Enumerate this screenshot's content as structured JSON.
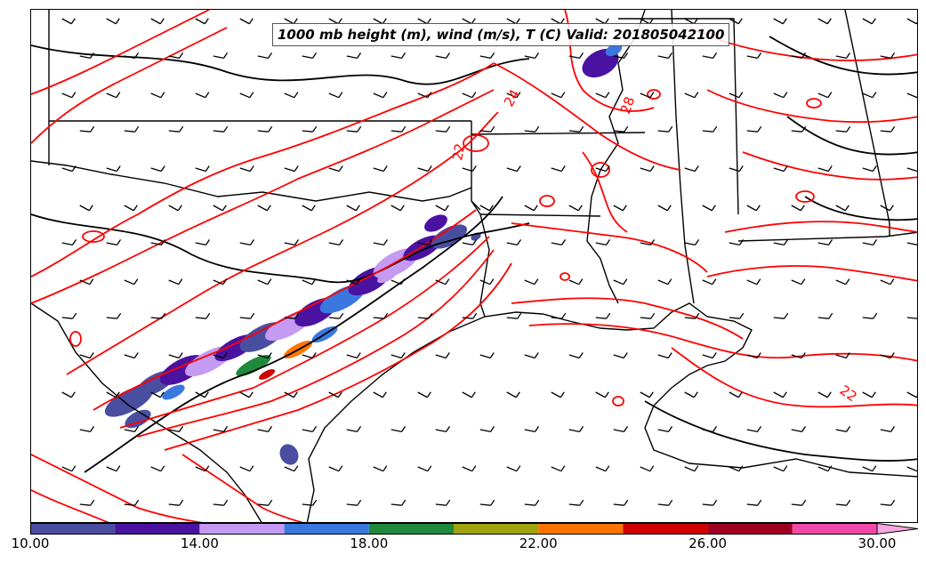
{
  "title": "1000 mb height (m), wind (m/s), T (C) Valid: 201805042100",
  "contour_labels": [
    "24",
    "28",
    "22",
    "22"
  ],
  "colorbar": {
    "ticks": [
      "10.00",
      "14.00",
      "18.00",
      "22.00",
      "26.00",
      "30.00"
    ],
    "min": 10,
    "max": 30,
    "extend": "max",
    "bins": [
      {
        "from": 10,
        "to": 12,
        "color": "#4a4ea0"
      },
      {
        "from": 12,
        "to": 14,
        "color": "#4a12a0"
      },
      {
        "from": 14,
        "to": 16,
        "color": "#c49af2"
      },
      {
        "from": 16,
        "to": 18,
        "color": "#3a78e0"
      },
      {
        "from": 18,
        "to": 20,
        "color": "#1f8a3c"
      },
      {
        "from": 20,
        "to": 22,
        "color": "#9ea30e"
      },
      {
        "from": 22,
        "to": 24,
        "color": "#ff7400"
      },
      {
        "from": 24,
        "to": 26,
        "color": "#d00000"
      },
      {
        "from": 26,
        "to": 28,
        "color": "#a00020"
      },
      {
        "from": 28,
        "to": 30,
        "color": "#f04aa8"
      }
    ],
    "extend_color": "#f8a8e0"
  },
  "colors": {
    "temperature_contours": "#ff0000",
    "height_contours": "#000000",
    "boundaries": "#000000",
    "wind_barbs": "#000000"
  }
}
